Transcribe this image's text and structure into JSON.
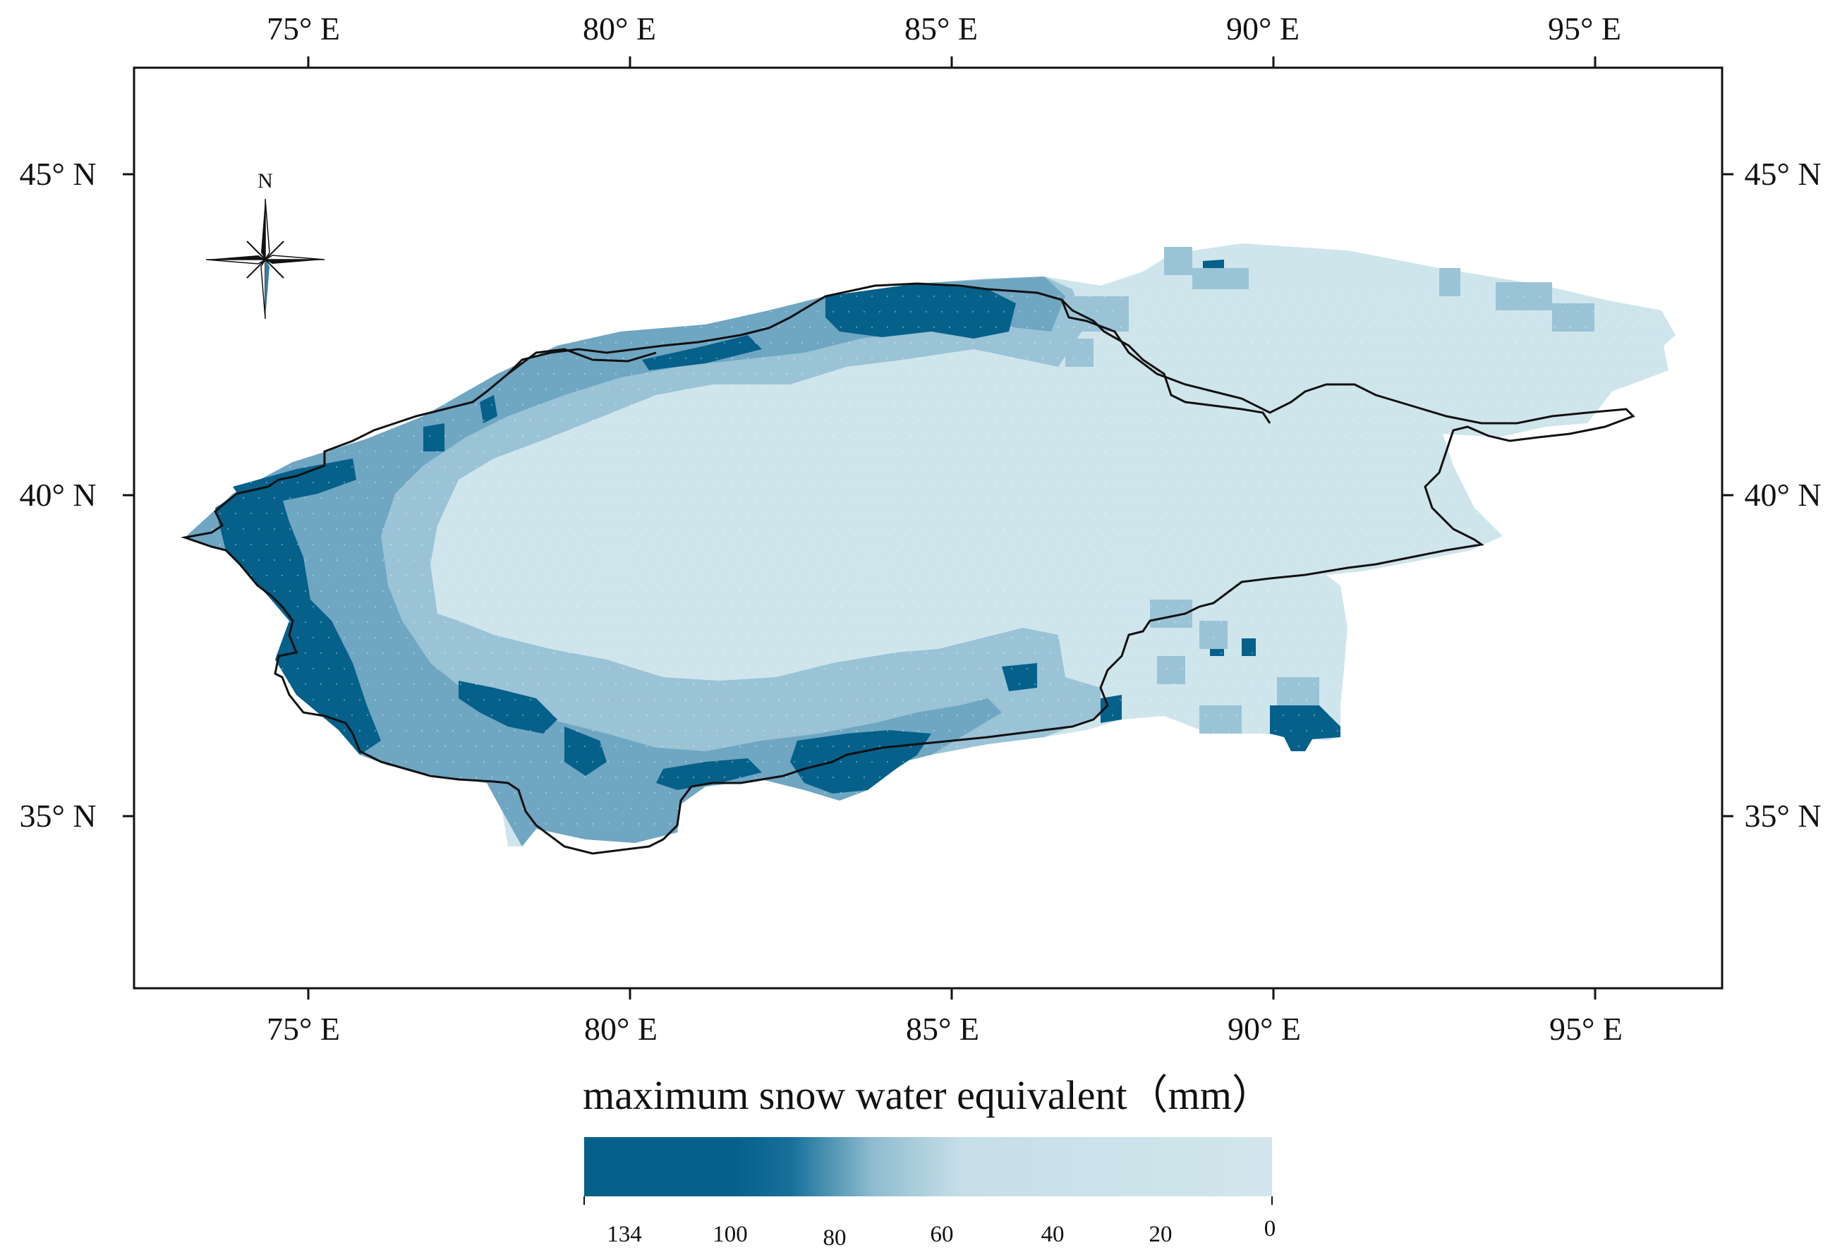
{
  "map": {
    "axes": {
      "top_ticks": [
        "75° E",
        "80° E",
        "85° E",
        "90° E",
        "95° E"
      ],
      "bottom_ticks": [
        "75° E",
        "80° E",
        "85° E",
        "90° E",
        "95° E"
      ],
      "left_ticks": [
        "45° N",
        "40° N",
        "35° N"
      ],
      "right_ticks": [
        "45° N",
        "40° N",
        "35° N"
      ]
    },
    "compass": {
      "label": "N"
    }
  },
  "legend": {
    "title": "maximum snow water equivalent（mm）",
    "ticks": [
      "134",
      "100",
      "80",
      "60",
      "40",
      "20",
      "0"
    ],
    "colors": {
      "high": "#05608a",
      "upper_mid": "#2f7ba0",
      "mid": "#6fa6c2",
      "low_mid": "#9ac3d6",
      "low": "#cfe5ec"
    }
  }
}
